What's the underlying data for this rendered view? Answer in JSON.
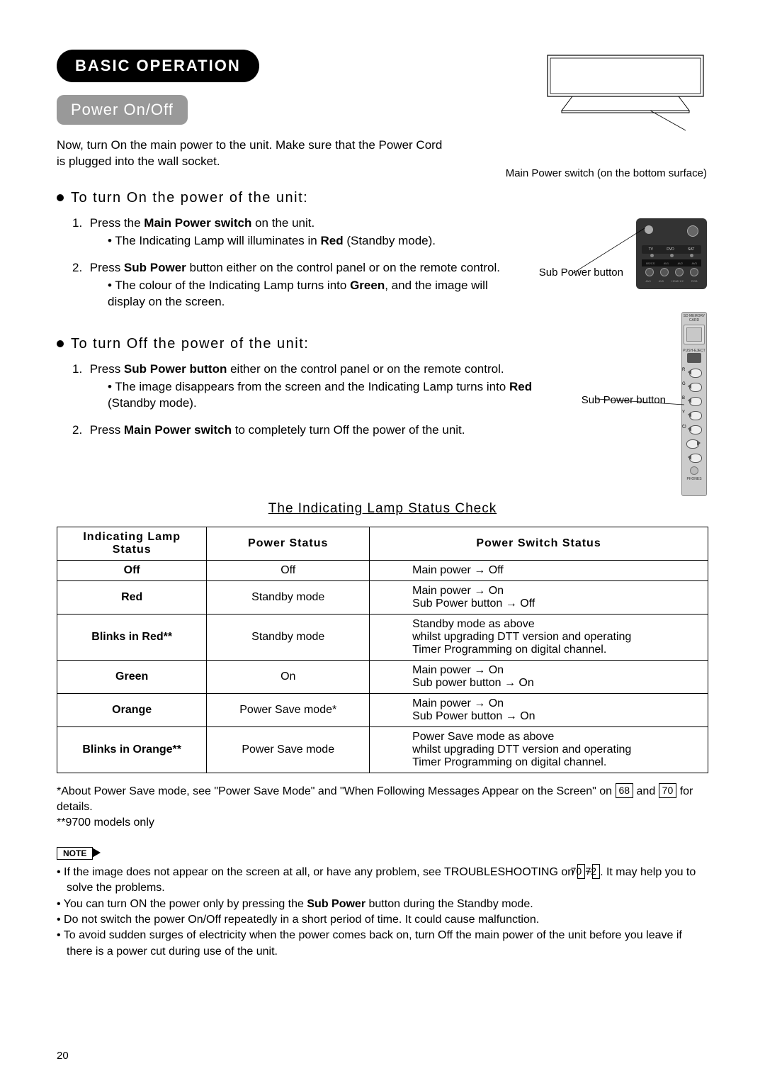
{
  "chapter_title": "BASIC OPERATION",
  "subtitle": "Power On/Off",
  "intro": "Now, turn On the main power to the unit. Make sure that the Power Cord is plugged into the wall socket.",
  "fig_tv_caption": "Main Power switch (on the bottom surface)",
  "sub_power_caption_1": "Sub Power button",
  "sub_power_caption_2": "Sub Power button",
  "heading_on": "To turn On the power of the unit:",
  "on_step1_pre": "Press the ",
  "on_step1_bold": "Main Power switch",
  "on_step1_post": " on the unit.",
  "on_step1_sub_pre": "The Indicating Lamp will illuminates in ",
  "on_step1_sub_bold": "Red",
  "on_step1_sub_post": " (Standby mode).",
  "on_step2_pre": "Press ",
  "on_step2_bold": "Sub Power",
  "on_step2_post": " button either on the control panel or on the remote control.",
  "on_step2_sub_pre": "The colour of the Indicating Lamp turns into ",
  "on_step2_sub_bold": "Green",
  "on_step2_sub_post": ", and the image will display on the screen.",
  "heading_off": "To turn Off the power of the unit:",
  "off_step1_pre": "Press ",
  "off_step1_bold": "Sub Power button",
  "off_step1_post": " either on the control panel or on the remote control.",
  "off_step1_sub_pre": "The image disappears from the screen and the Indicating Lamp turns into ",
  "off_step1_sub_bold": "Red",
  "off_step1_sub_post": " (Standby mode).",
  "off_step2_pre": "Press ",
  "off_step2_bold": "Main Power switch",
  "off_step2_post": " to completely turn Off the power of the unit.",
  "table_heading": "The Indicating Lamp Status Check",
  "th1_l1": "Indicating Lamp",
  "th1_l2": "Status",
  "th2": "Power Status",
  "th3": "Power Switch Status",
  "table_rows": [
    {
      "c1": "Off",
      "c2": "Off",
      "c3": "Main power → Off"
    },
    {
      "c1": "Red",
      "c2": "Standby mode",
      "c3": "Main power → On\nSub Power button → Off"
    },
    {
      "c1": "Blinks in Red**",
      "c2": "Standby mode",
      "c3": "Standby mode as above\nwhilst upgrading DTT version and operating\nTimer Programming on digital channel."
    },
    {
      "c1": "Green",
      "c2": "On",
      "c3": "Main power → On\nSub power button → On"
    },
    {
      "c1": "Orange",
      "c2": "Power Save mode*",
      "c3": "Main power → On\nSub Power button → On"
    },
    {
      "c1": "Blinks in Orange**",
      "c2": "Power Save mode",
      "c3": "Power Save mode as above\nwhilst upgrading DTT version and operating\nTimer Programming on digital channel."
    }
  ],
  "footnote1_pre": "*About Power Save mode, see \"Power Save Mode\" and \"When Following Messages Appear on the Screen\" on ",
  "footnote1_ref1": "68",
  "footnote1_mid": " and ",
  "footnote1_ref2": "70",
  "footnote1_post": " for details.",
  "footnote2": "**9700 models only",
  "note_label": "NOTE",
  "note1_pre": "• If the image does not appear on the screen at all, or have any problem, see TROUBLESHOOTING on ",
  "note1_ref1": "70",
  "note1_tilde": "~",
  "note1_ref2": "72",
  "note1_post": ". It may help you to solve the problems.",
  "note2_pre": "• You can turn ON the power only by pressing the ",
  "note2_bold": "Sub Power",
  "note2_post": " button during the Standby mode.",
  "note3": "• Do not switch the power On/Off repeatedly in a short period of time. It could cause malfunction.",
  "note4": "• To avoid sudden surges of electricity when the power comes back on, turn Off the main power of the unit before you leave if there is a power cut during use of the unit.",
  "page_number": "20",
  "panel_labels": {
    "top1": "SD MEMORY",
    "top2": "CARD",
    "slot": "PUSH-EJECT",
    "btn1": "R",
    "btn2": "G",
    "btn3": "B",
    "btn4": "Y",
    "power": "⏻",
    "phones": "PHONES"
  },
  "colors": {
    "chapter_pill_bg": "#000000",
    "chapter_pill_fg": "#ffffff",
    "subtitle_pill_bg": "#999999",
    "subtitle_pill_fg": "#ffffff",
    "body_text": "#000000",
    "table_border": "#000000",
    "pgref_border": "#000000",
    "remote_bg": "#333333",
    "panel_bg": "#cccccc"
  }
}
